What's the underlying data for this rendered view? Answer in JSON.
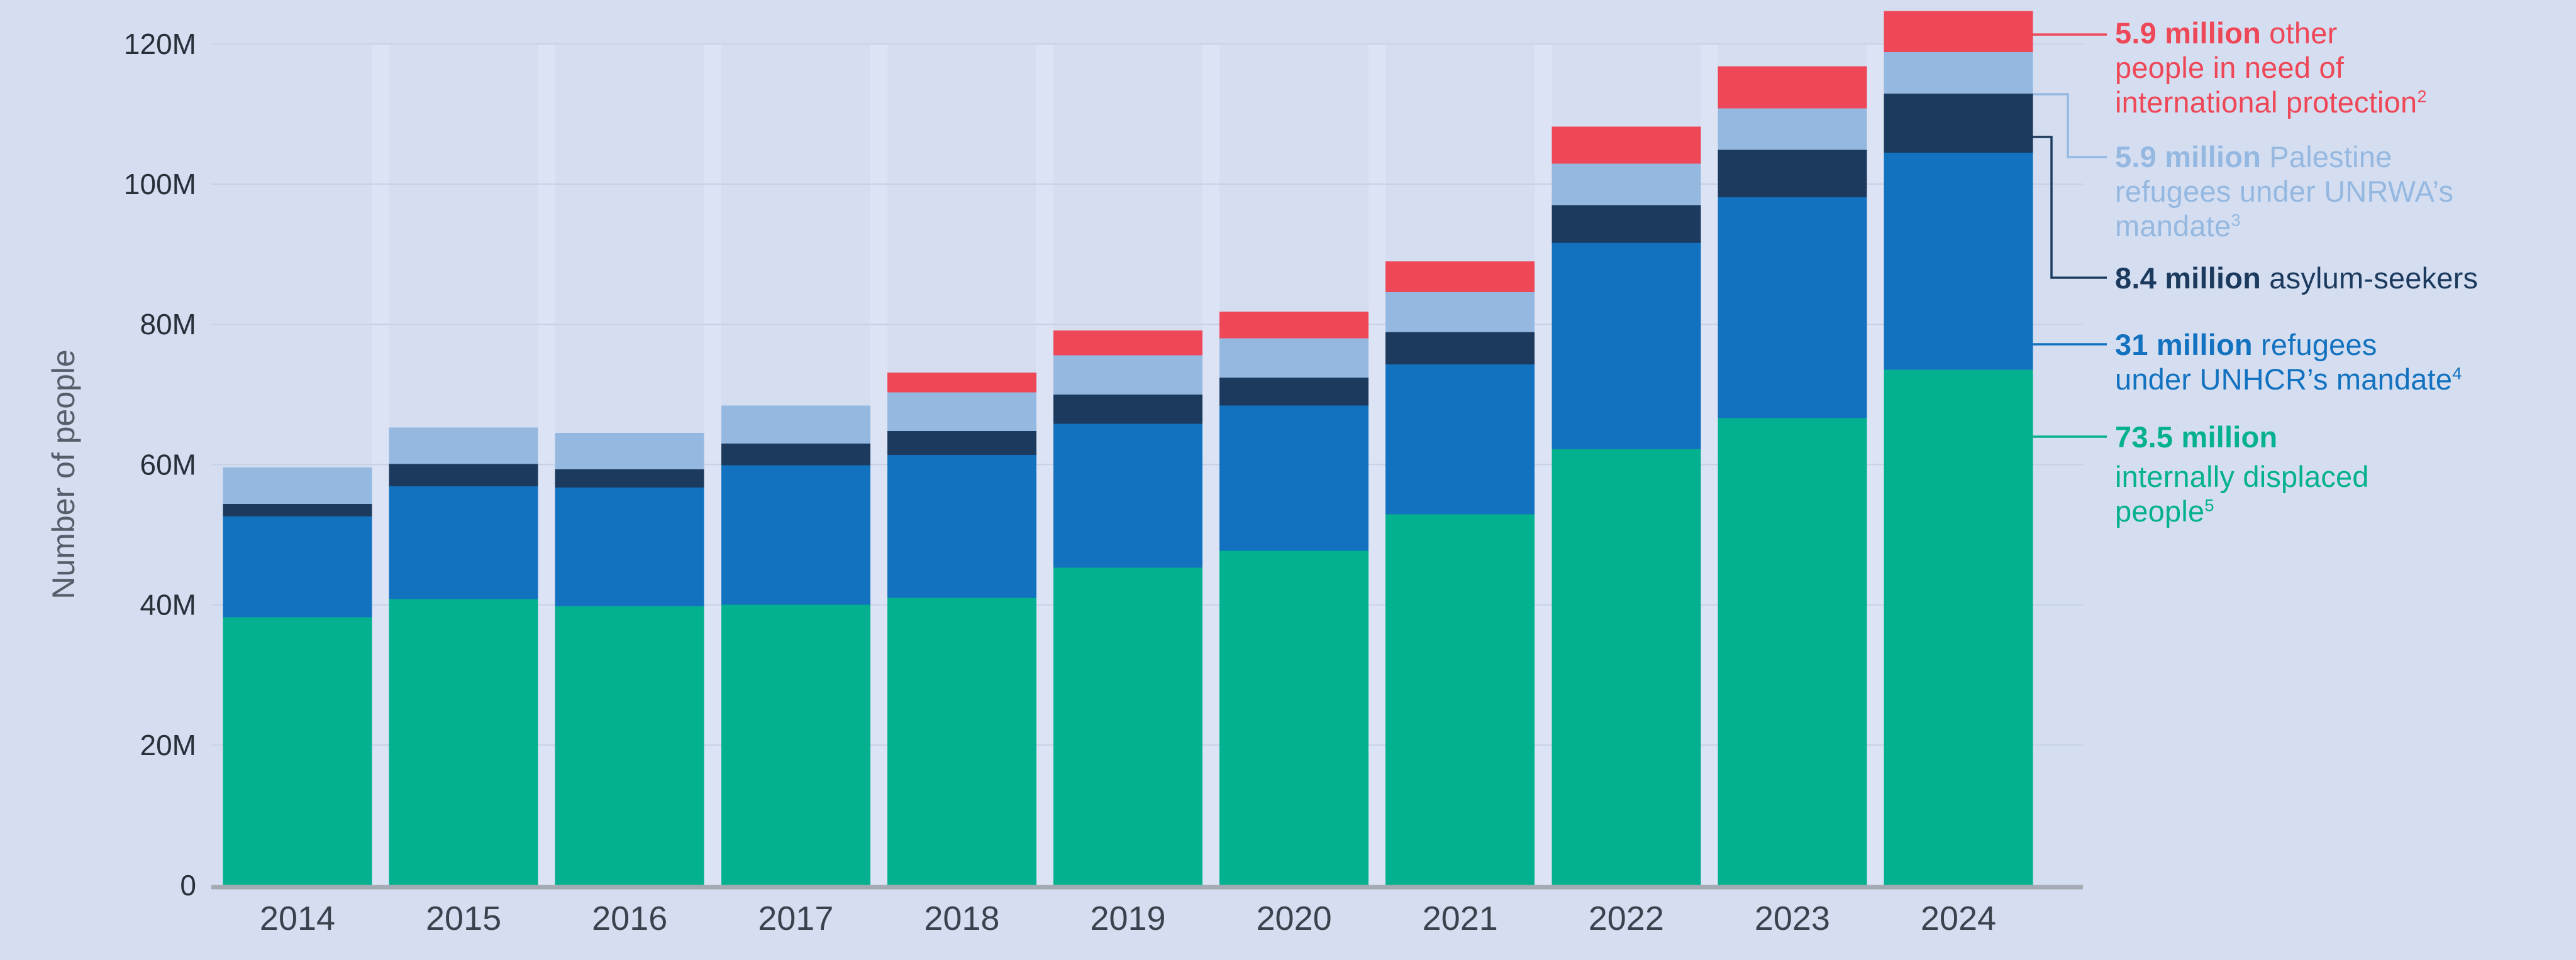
{
  "chart_data": {
    "type": "bar",
    "stacked": true,
    "title": "",
    "xlabel": "",
    "ylabel": "Number of people",
    "ylim": [
      0,
      120
    ],
    "grid": true,
    "legend_position": "right",
    "categories": [
      "2014",
      "2015",
      "2016",
      "2017",
      "2018",
      "2019",
      "2020",
      "2021",
      "2022",
      "2023",
      "2024"
    ],
    "yticks": [
      {
        "value": 0,
        "label": "0"
      },
      {
        "value": 20,
        "label": "20M"
      },
      {
        "value": 40,
        "label": "40M"
      },
      {
        "value": 60,
        "label": "60M"
      },
      {
        "value": 80,
        "label": "80M"
      },
      {
        "value": 100,
        "label": "100M"
      },
      {
        "value": 120,
        "label": "120M"
      }
    ],
    "series": [
      {
        "key": "idp",
        "name": "Internally displaced people",
        "color": "#03b08f",
        "values": [
          38.2,
          40.8,
          39.8,
          40.0,
          41.0,
          45.3,
          47.7,
          52.9,
          62.2,
          66.6,
          73.5
        ]
      },
      {
        "key": "refugees",
        "name": "Refugees under UNHCR's mandate",
        "color": "#1272bf",
        "values": [
          14.4,
          16.1,
          16.9,
          19.9,
          20.4,
          20.5,
          20.7,
          21.4,
          29.4,
          31.5,
          31.0
        ]
      },
      {
        "key": "asylum",
        "name": "Asylum-seekers",
        "color": "#1b3a5e",
        "values": [
          1.8,
          3.2,
          2.6,
          3.1,
          3.4,
          4.2,
          4.0,
          4.6,
          5.4,
          6.8,
          8.4
        ]
      },
      {
        "key": "unrwa",
        "name": "Palestine refugees under UNRWA's mandate",
        "color": "#95b8e1",
        "values": [
          5.2,
          5.2,
          5.2,
          5.4,
          5.5,
          5.6,
          5.6,
          5.7,
          5.9,
          5.9,
          5.9
        ]
      },
      {
        "key": "other",
        "name": "Other people in need of international protection",
        "color": "#ee4757",
        "values": [
          0,
          0,
          0,
          0,
          2.8,
          3.5,
          3.8,
          4.4,
          5.3,
          6.0,
          5.9
        ]
      }
    ]
  },
  "legend": [
    {
      "key": "other",
      "bold": "5.9 million",
      "lines": [
        "5.9 million other",
        "people in need of",
        "international protection"
      ],
      "sup": "2"
    },
    {
      "key": "unrwa",
      "bold": "5.9 million",
      "lines": [
        "5.9 million Palestine",
        "refugees under UNRWA’s",
        "mandate"
      ],
      "sup": "3"
    },
    {
      "key": "asylum",
      "bold": "8.4 million",
      "lines": [
        "8.4 million asylum-seekers"
      ],
      "sup": ""
    },
    {
      "key": "refugees",
      "bold": "31 million",
      "lines": [
        "31 million refugees",
        "under UNHCR’s mandate"
      ],
      "sup": "4"
    },
    {
      "key": "idp",
      "bold": "73.5 million",
      "lines": [
        "73.5 million",
        "internally displaced",
        "people"
      ],
      "sup": "5"
    }
  ],
  "palette": {
    "background": "#d5def0",
    "bar_gap_strip": "#dce3f4",
    "gridline": "#c6d1e8",
    "axis_line": "#a4abb4",
    "tick_text": "#272f39",
    "year_text": "#3a434d",
    "ylabel_text": "#555f6a"
  }
}
